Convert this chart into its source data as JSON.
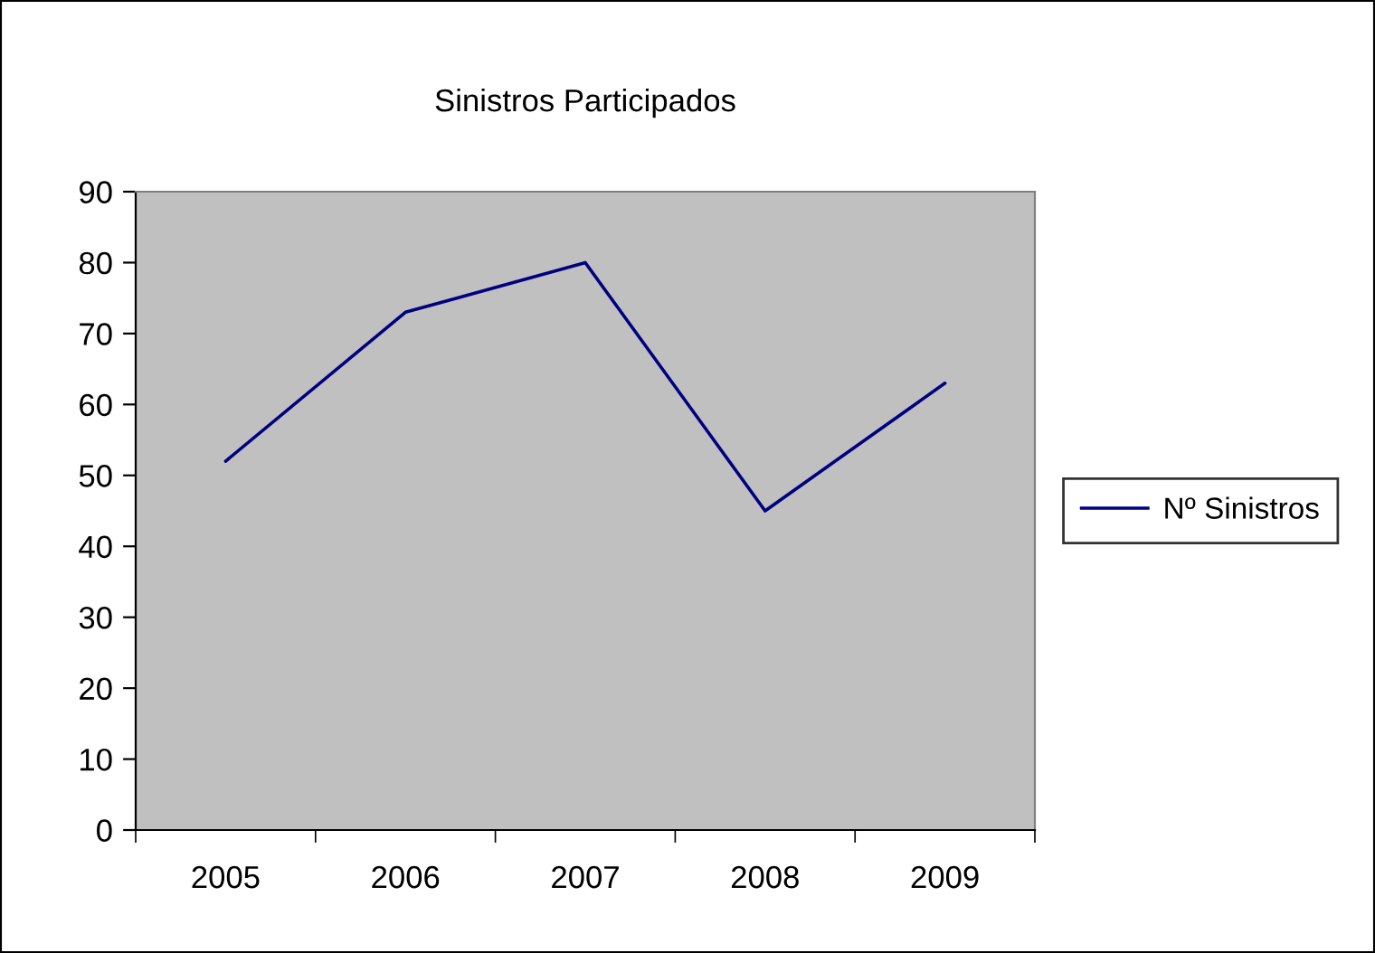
{
  "chart_data": {
    "type": "line",
    "title": "Sinistros Participados",
    "categories": [
      "2005",
      "2006",
      "2007",
      "2008",
      "2009"
    ],
    "series": [
      {
        "name": "Nº Sinistros",
        "color": "#000080",
        "values": [
          52,
          73,
          80,
          45,
          63
        ]
      }
    ],
    "ylim": [
      0,
      90
    ],
    "yticks": [
      0,
      10,
      20,
      30,
      40,
      50,
      60,
      70,
      80,
      90
    ],
    "grid": false,
    "legend": "right",
    "marker": "none",
    "line_style": "solid"
  }
}
